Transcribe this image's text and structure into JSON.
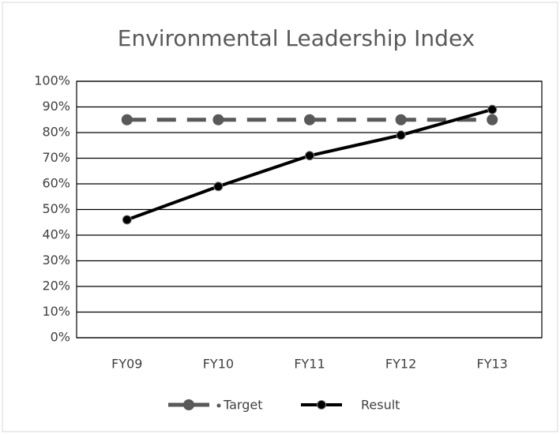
{
  "chart_data": {
    "type": "line",
    "title": "Environmental Leadership Index",
    "categories": [
      "FY09",
      "FY10",
      "FY11",
      "FY12",
      "FY13"
    ],
    "series": [
      {
        "name": "Target",
        "color": "#595959",
        "dashed": true,
        "values": [
          85,
          85,
          85,
          85,
          85
        ]
      },
      {
        "name": "Result",
        "color": "#000000",
        "dashed": false,
        "values": [
          46,
          59,
          71,
          79,
          89
        ]
      }
    ],
    "ylim": [
      0,
      100
    ],
    "yticks": [
      {
        "value": 0,
        "label": "0%"
      },
      {
        "value": 10,
        "label": "10%"
      },
      {
        "value": 20,
        "label": "20%"
      },
      {
        "value": 30,
        "label": "30%"
      },
      {
        "value": 40,
        "label": "40%"
      },
      {
        "value": 50,
        "label": "50%"
      },
      {
        "value": 60,
        "label": "60%"
      },
      {
        "value": 70,
        "label": "70%"
      },
      {
        "value": 80,
        "label": "80%"
      },
      {
        "value": 90,
        "label": "90%"
      },
      {
        "value": 100,
        "label": "100%"
      }
    ],
    "grid": true,
    "legend": "bottom"
  }
}
